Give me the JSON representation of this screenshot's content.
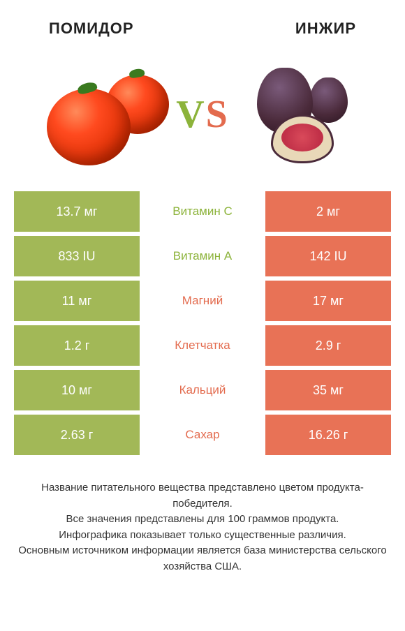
{
  "header": {
    "left_title": "ПОМИДОР",
    "right_title": "ИНЖИР"
  },
  "vs": {
    "v": "V",
    "s": "S"
  },
  "colors": {
    "left_column": "#a2b857",
    "right_column": "#e87256",
    "left_accent": "#8cb33a",
    "right_accent": "#e36b4e",
    "background": "#ffffff",
    "row_gap": 6
  },
  "table": {
    "rows": [
      {
        "left": "13.7 мг",
        "label": "Витамин C",
        "right": "2 мг",
        "winner": "left"
      },
      {
        "left": "833 IU",
        "label": "Витамин A",
        "right": "142 IU",
        "winner": "left"
      },
      {
        "left": "11 мг",
        "label": "Магний",
        "right": "17 мг",
        "winner": "right"
      },
      {
        "left": "1.2 г",
        "label": "Клетчатка",
        "right": "2.9 г",
        "winner": "right"
      },
      {
        "left": "10 мг",
        "label": "Кальций",
        "right": "35 мг",
        "winner": "right"
      },
      {
        "left": "2.63 г",
        "label": "Сахар",
        "right": "16.26 г",
        "winner": "right"
      }
    ]
  },
  "footnotes": [
    "Название питательного вещества представлено цветом продукта-победителя.",
    "Все значения представлены для 100 граммов продукта.",
    "Инфографика показывает только существенные различия.",
    "Основным источником информации является база министерства сельского хозяйства США."
  ]
}
